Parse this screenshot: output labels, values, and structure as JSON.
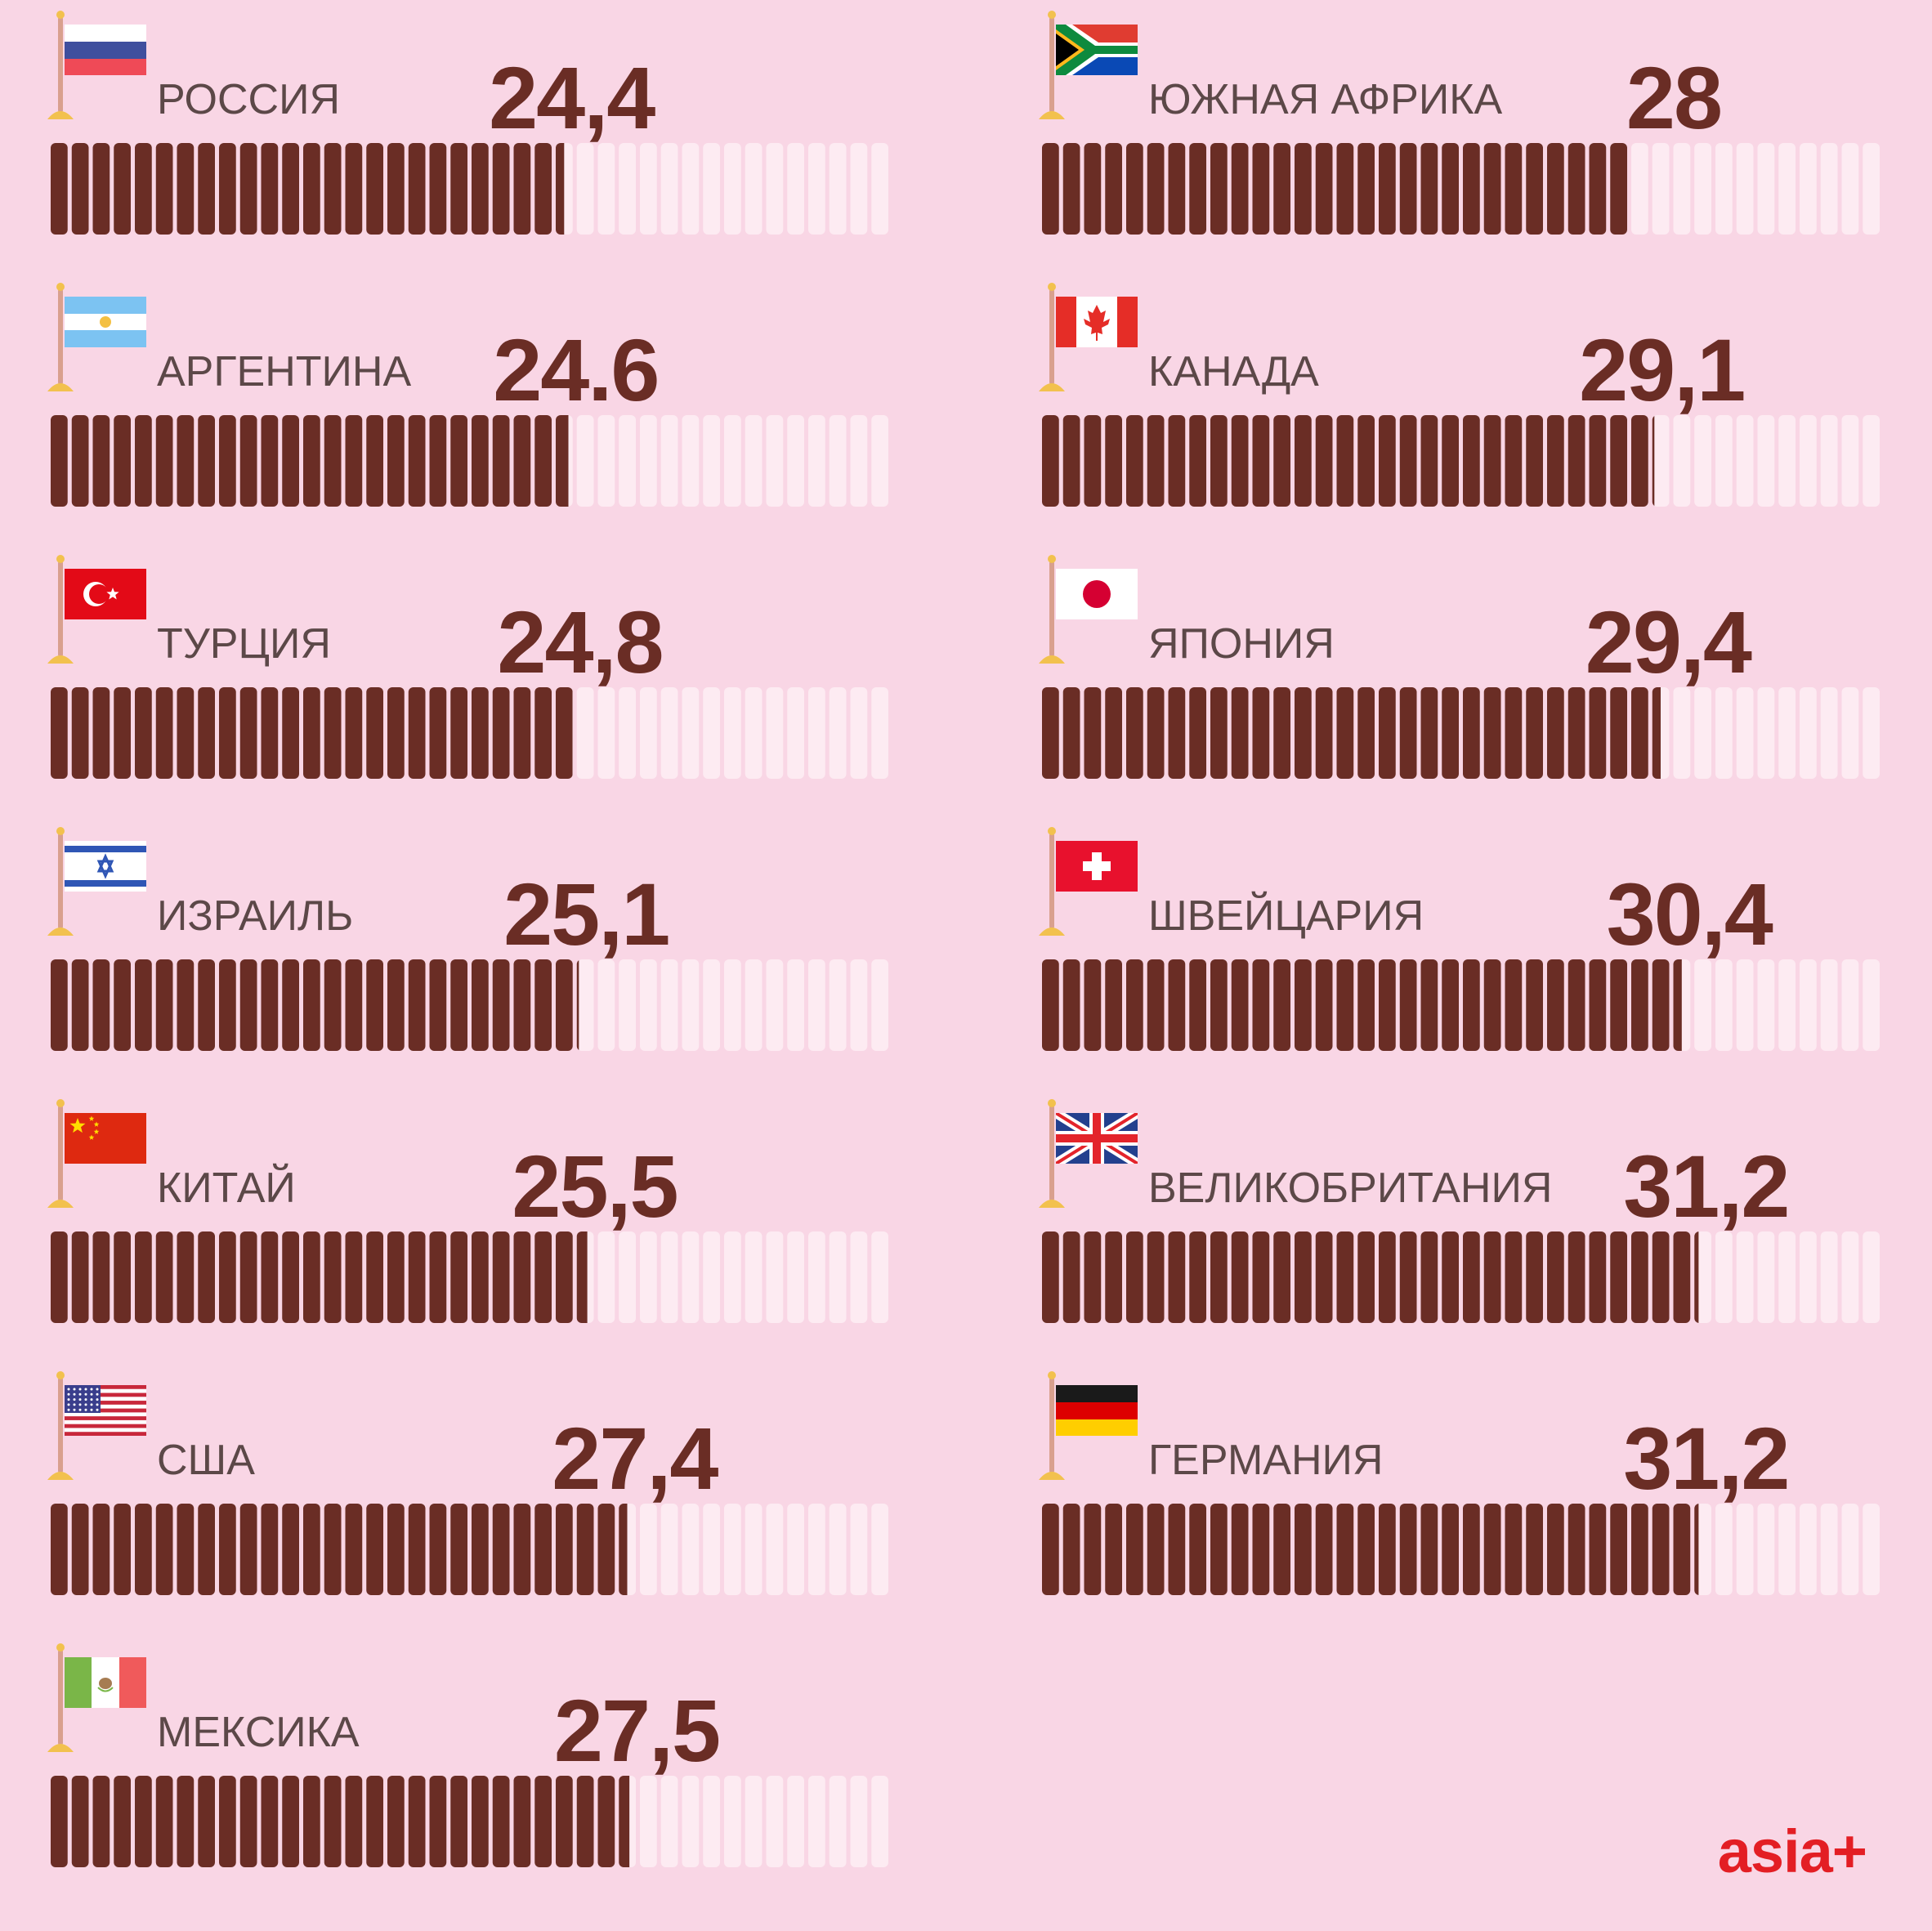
{
  "chart_data": {
    "type": "bar",
    "scale_max": 40,
    "segments_per_bar": 40,
    "colors": {
      "filled": "#6a2d25",
      "empty": "#fdebf2",
      "background": "#f9d6e5",
      "pole": "#d9a08e",
      "pole_base": "#f2c14e"
    },
    "series": [
      {
        "name": "РОССИЯ",
        "value": 24.4,
        "label": "24,4",
        "flag": "flag-russia"
      },
      {
        "name": "АРГЕНТИНА",
        "value": 24.6,
        "label": "24.6",
        "flag": "flag-argentina"
      },
      {
        "name": "ТУРЦИЯ",
        "value": 24.8,
        "label": "24,8",
        "flag": "flag-turkey"
      },
      {
        "name": "ИЗРАИЛЬ",
        "value": 25.1,
        "label": "25,1",
        "flag": "flag-israel"
      },
      {
        "name": "КИТАЙ",
        "value": 25.5,
        "label": "25,5",
        "flag": "flag-china"
      },
      {
        "name": "США",
        "value": 27.4,
        "label": "27,4",
        "flag": "flag-usa"
      },
      {
        "name": "МЕКСИКА",
        "value": 27.5,
        "label": "27,5",
        "flag": "flag-mexico"
      },
      {
        "name": "ЮЖНАЯ АФРИКА",
        "value": 28,
        "label": "28",
        "flag": "flag-south-africa"
      },
      {
        "name": "КАНАДА",
        "value": 29.1,
        "label": "29,1",
        "flag": "flag-canada"
      },
      {
        "name": "ЯПОНИЯ",
        "value": 29.4,
        "label": "29,4",
        "flag": "flag-japan"
      },
      {
        "name": "ШВЕЙЦАРИЯ",
        "value": 30.4,
        "label": "30,4",
        "flag": "flag-switzerland"
      },
      {
        "name": "ВЕЛИКОБРИТАНИЯ",
        "value": 31.2,
        "label": "31,2",
        "flag": "flag-uk"
      },
      {
        "name": "ГЕРМАНИЯ",
        "value": 31.2,
        "label": "31,2",
        "flag": "flag-germany"
      }
    ]
  },
  "logo": {
    "text": "asia+",
    "color": "#e31e24"
  }
}
